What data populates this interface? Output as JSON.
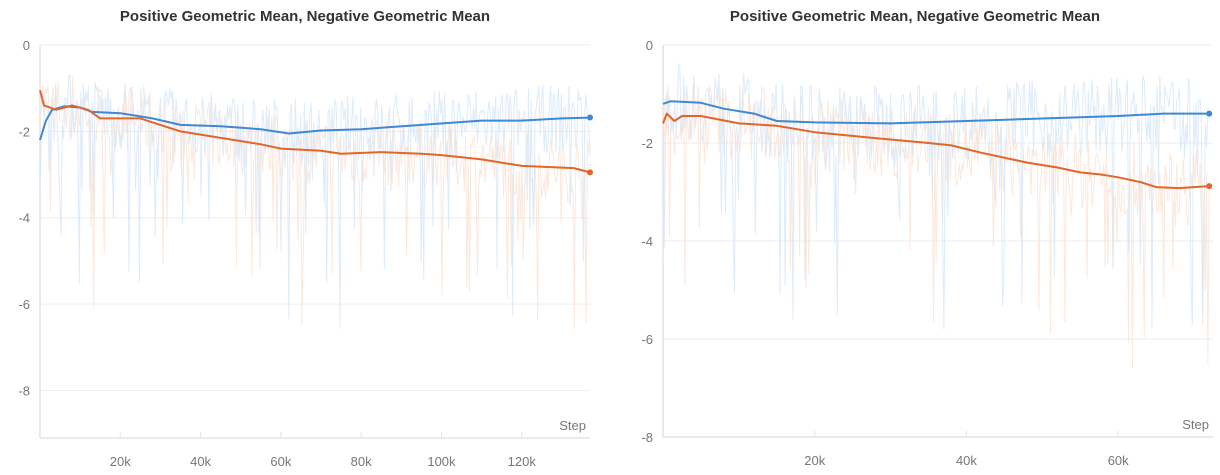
{
  "chart_data": [
    {
      "type": "line",
      "title": "Positive Geometric Mean, Negative Geometric Mean",
      "xlabel": "Step",
      "ylabel": "",
      "xlim": [
        0,
        137000
      ],
      "ylim": [
        -9.1,
        0
      ],
      "x_ticks": [
        20000,
        40000,
        60000,
        80000,
        100000,
        120000
      ],
      "x_tick_labels": [
        "20k",
        "40k",
        "60k",
        "80k",
        "100k",
        "120k"
      ],
      "y_ticks": [
        0,
        -2,
        -4,
        -6,
        -8
      ],
      "y_tick_labels": [
        "0",
        "-2",
        "-4",
        "-6",
        "-8"
      ],
      "grid": true,
      "series": [
        {
          "name": "Positive Geometric Mean",
          "color": "#3f88d2",
          "raw_color": "#d6e6f7",
          "x": [
            0,
            1500,
            3000,
            6000,
            10000,
            13000,
            20000,
            28000,
            35000,
            45000,
            55000,
            62000,
            70000,
            80000,
            95000,
            110000,
            120000,
            130000,
            137000
          ],
          "y": [
            -2.2,
            -1.75,
            -1.5,
            -1.42,
            -1.45,
            -1.55,
            -1.58,
            -1.7,
            -1.85,
            -1.88,
            -1.95,
            -2.05,
            -1.98,
            -1.95,
            -1.85,
            -1.75,
            -1.75,
            -1.7,
            -1.68
          ]
        },
        {
          "name": "Negative Geometric Mean",
          "color": "#e0662a",
          "raw_color": "#fbe2d3",
          "x": [
            0,
            1000,
            2500,
            4000,
            8000,
            12000,
            15000,
            25000,
            30000,
            35000,
            45000,
            55000,
            60000,
            70000,
            75000,
            85000,
            95000,
            100000,
            110000,
            120000,
            133000,
            137000
          ],
          "y": [
            -1.05,
            -1.4,
            -1.45,
            -1.5,
            -1.4,
            -1.5,
            -1.7,
            -1.7,
            -1.85,
            -2.0,
            -2.15,
            -2.3,
            -2.4,
            -2.45,
            -2.52,
            -2.48,
            -2.52,
            -2.55,
            -2.65,
            -2.8,
            -2.85,
            -2.95
          ]
        }
      ]
    },
    {
      "type": "line",
      "title": "Positive Geometric Mean, Negative Geometric Mean",
      "xlabel": "Step",
      "ylabel": "",
      "xlim": [
        0,
        72500
      ],
      "ylim": [
        -8,
        0
      ],
      "x_ticks": [
        20000,
        40000,
        60000
      ],
      "x_tick_labels": [
        "20k",
        "40k",
        "60k"
      ],
      "y_ticks": [
        0,
        -2,
        -4,
        -6,
        -8
      ],
      "y_tick_labels": [
        "0",
        "-2",
        "-4",
        "-6",
        "-8"
      ],
      "grid": true,
      "series": [
        {
          "name": "Positive Geometric Mean",
          "color": "#3f88d2",
          "raw_color": "#d6e6f7",
          "x": [
            0,
            1000,
            5000,
            8000,
            12000,
            15000,
            20000,
            30000,
            40000,
            50000,
            60000,
            66000,
            72000
          ],
          "y": [
            -1.2,
            -1.15,
            -1.18,
            -1.3,
            -1.4,
            -1.55,
            -1.58,
            -1.6,
            -1.55,
            -1.5,
            -1.45,
            -1.4,
            -1.4
          ]
        },
        {
          "name": "Negative Geometric Mean",
          "color": "#e0662a",
          "raw_color": "#fbe2d3",
          "x": [
            0,
            500,
            1500,
            2500,
            5000,
            10000,
            15000,
            20000,
            28000,
            35000,
            38000,
            42000,
            48000,
            52000,
            55000,
            58000,
            60000,
            63000,
            65000,
            68000,
            72000
          ],
          "y": [
            -1.6,
            -1.4,
            -1.55,
            -1.45,
            -1.45,
            -1.6,
            -1.65,
            -1.78,
            -1.9,
            -2.0,
            -2.05,
            -2.2,
            -2.4,
            -2.5,
            -2.6,
            -2.65,
            -2.7,
            -2.8,
            -2.9,
            -2.92,
            -2.88
          ]
        }
      ]
    }
  ]
}
